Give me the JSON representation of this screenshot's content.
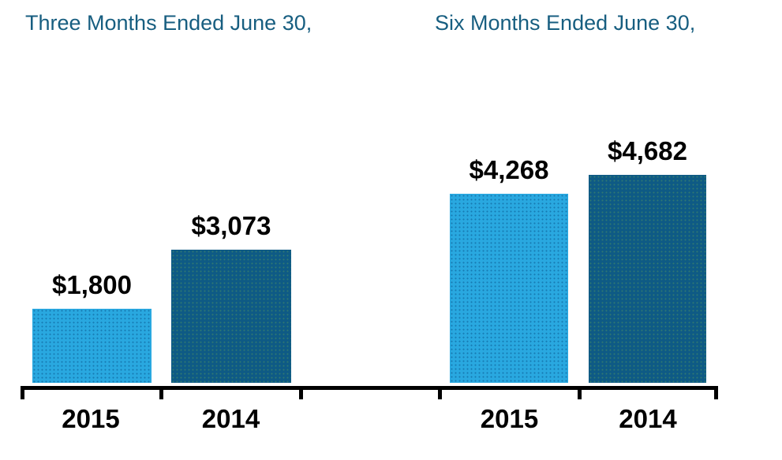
{
  "chart_data": {
    "type": "bar",
    "groups": [
      {
        "title": "Three Months Ended June 30,",
        "categories": [
          "2015",
          "2014"
        ],
        "values": [
          1800,
          3073
        ],
        "labels": [
          "$1,800",
          "$3,073"
        ]
      },
      {
        "title": "Six Months Ended June 30,",
        "categories": [
          "2015",
          "2014"
        ],
        "values": [
          4268,
          4682
        ],
        "labels": [
          "$4,268",
          "$4,682"
        ]
      }
    ],
    "series_colors": {
      "year_2015": "#29A8E0",
      "year_2014": "#0E5A85"
    },
    "title_color": "#175E80",
    "value_label_color": "#000000",
    "axis_color": "#000000",
    "ylim": [
      0,
      4800
    ],
    "grid": false,
    "legend": "none",
    "xlabel": "",
    "ylabel": ""
  }
}
